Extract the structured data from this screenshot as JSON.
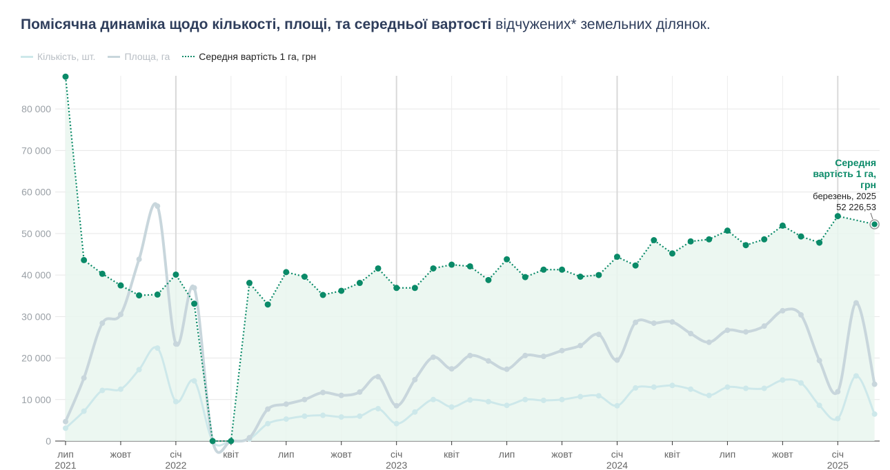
{
  "title": {
    "bold": "Помісячна динаміка щодо кількості, площі, та середньої вартості",
    "rest": " відчужених* земельних ділянок."
  },
  "legend": [
    {
      "label": "Кількість, шт.",
      "color": "#cde8ea",
      "style": "solid",
      "muted": true
    },
    {
      "label": "Площа, га",
      "color": "#c8d6dc",
      "style": "solid",
      "muted": true
    },
    {
      "label": "Середня вартість 1 га, грн",
      "color": "#0a8a68",
      "style": "dotted",
      "muted": false
    }
  ],
  "annotation": {
    "title": "Середня вартість 1 га, грн",
    "date": "березень, 2025",
    "value": "52 226,53"
  },
  "chart_data": {
    "type": "line",
    "x_start": "2021-07",
    "x_tick_labels": [
      "лип",
      "жовт",
      "січ",
      "квіт",
      "лип",
      "жовт",
      "січ",
      "квіт",
      "лип",
      "жовт",
      "січ",
      "квіт",
      "лип",
      "жовт",
      "січ"
    ],
    "x_year_labels": [
      "2021",
      "2022",
      "2023",
      "2024",
      "2025"
    ],
    "ylim": [
      0,
      88000
    ],
    "y_ticks": [
      "0",
      "10 000",
      "20 000",
      "30 000",
      "40 000",
      "50 000",
      "60 000",
      "70 000",
      "80 000"
    ],
    "y_tick_values": [
      0,
      10000,
      20000,
      30000,
      40000,
      50000,
      60000,
      70000,
      80000
    ],
    "grid": true,
    "series": [
      {
        "name": "Кількість, шт.",
        "color": "#cde8ea",
        "values": [
          3100,
          7200,
          12200,
          12500,
          17200,
          22400,
          9500,
          14500,
          0,
          0,
          500,
          4200,
          5300,
          6000,
          6200,
          5800,
          6000,
          7800,
          4200,
          7000,
          10000,
          8200,
          9900,
          9500,
          8600,
          10000,
          9800,
          10000,
          10700,
          10900,
          8500,
          12800,
          13000,
          13400,
          12500,
          11000,
          13000,
          12700,
          12700,
          14700,
          14000,
          8600,
          5400,
          15700,
          6500
        ]
      },
      {
        "name": "Площа, га",
        "color": "#c8d6dc",
        "values": [
          4700,
          15200,
          28400,
          30500,
          43800,
          56600,
          23400,
          36900,
          0,
          0,
          800,
          7700,
          8900,
          10000,
          11700,
          11000,
          11800,
          15500,
          8500,
          14800,
          20200,
          17400,
          20600,
          19300,
          17300,
          20600,
          20400,
          21800,
          23000,
          25700,
          19500,
          28600,
          28400,
          28700,
          25900,
          23800,
          26700,
          26300,
          27700,
          31400,
          30400,
          19400,
          11900,
          33300,
          13700
        ]
      },
      {
        "name": "Середня вартість 1 га, грн",
        "color": "#0a8a68",
        "values": [
          87800,
          43600,
          40300,
          37500,
          35100,
          35300,
          40100,
          33100,
          0,
          0,
          38100,
          32900,
          40700,
          39600,
          35200,
          36200,
          38100,
          41600,
          36900,
          36900,
          41600,
          42500,
          42100,
          38800,
          43800,
          39500,
          41300,
          41300,
          39600,
          40000,
          44400,
          42300,
          48400,
          45200,
          48100,
          48600,
          50700,
          47200,
          48600,
          51900,
          49300,
          47800,
          54200,
          null,
          52226.53
        ]
      }
    ]
  }
}
